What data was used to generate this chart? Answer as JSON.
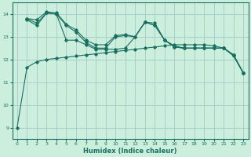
{
  "xlabel": "Humidex (Indice chaleur)",
  "bg_color": "#cceedd",
  "grid_color": "#aacccc",
  "line_color": "#1a7060",
  "ylim": [
    8.5,
    14.5
  ],
  "xlim": [
    -0.5,
    23.5
  ],
  "yticks": [
    9,
    10,
    11,
    12,
    13,
    14
  ],
  "xticks": [
    0,
    1,
    2,
    3,
    4,
    5,
    6,
    7,
    8,
    9,
    10,
    11,
    12,
    13,
    14,
    15,
    16,
    17,
    18,
    19,
    20,
    21,
    22,
    23
  ],
  "lines": [
    {
      "x": [
        0,
        1,
        2,
        3,
        4,
        5,
        6,
        7,
        8,
        9,
        10,
        11,
        12,
        13,
        14,
        15,
        16,
        17,
        18,
        19,
        20,
        21,
        22,
        23
      ],
      "y": [
        9.0,
        11.65,
        11.9,
        12.0,
        12.05,
        12.1,
        12.15,
        12.2,
        12.25,
        12.3,
        12.35,
        12.4,
        12.45,
        12.5,
        12.55,
        12.6,
        12.65,
        12.65,
        12.65,
        12.65,
        12.6,
        12.5,
        12.15,
        11.4
      ]
    },
    {
      "x": [
        1,
        2,
        3,
        4,
        5,
        6,
        7,
        8,
        9,
        10,
        11,
        12,
        13,
        14,
        15,
        16,
        17,
        18,
        19,
        20,
        21,
        22,
        23
      ],
      "y": [
        13.8,
        13.75,
        14.1,
        14.05,
        13.55,
        13.3,
        12.85,
        12.65,
        12.65,
        13.05,
        13.1,
        13.0,
        13.65,
        13.6,
        12.85,
        12.6,
        12.5,
        12.5,
        12.5,
        12.5,
        12.5,
        12.2,
        11.4
      ]
    },
    {
      "x": [
        1,
        2,
        3,
        4,
        5,
        6,
        7,
        8,
        9,
        10,
        11,
        12,
        13,
        14,
        15,
        16,
        17,
        18,
        19,
        20,
        21,
        22,
        23
      ],
      "y": [
        13.8,
        13.6,
        14.05,
        14.0,
        13.5,
        13.2,
        12.75,
        12.5,
        12.5,
        13.0,
        13.05,
        13.0,
        13.65,
        13.5,
        12.85,
        12.55,
        12.5,
        12.5,
        12.5,
        12.5,
        12.5,
        12.2,
        11.4
      ]
    },
    {
      "x": [
        1,
        2,
        3,
        4,
        5,
        6,
        7,
        8,
        9,
        10,
        11,
        12,
        13,
        14,
        15,
        16,
        17,
        18,
        19,
        20,
        21,
        22,
        23
      ],
      "y": [
        13.75,
        13.5,
        14.05,
        14.0,
        12.85,
        12.85,
        12.65,
        12.45,
        12.45,
        12.45,
        12.5,
        13.0,
        13.65,
        13.5,
        12.85,
        12.55,
        12.5,
        12.5,
        12.5,
        12.5,
        12.5,
        12.2,
        11.4
      ]
    }
  ]
}
